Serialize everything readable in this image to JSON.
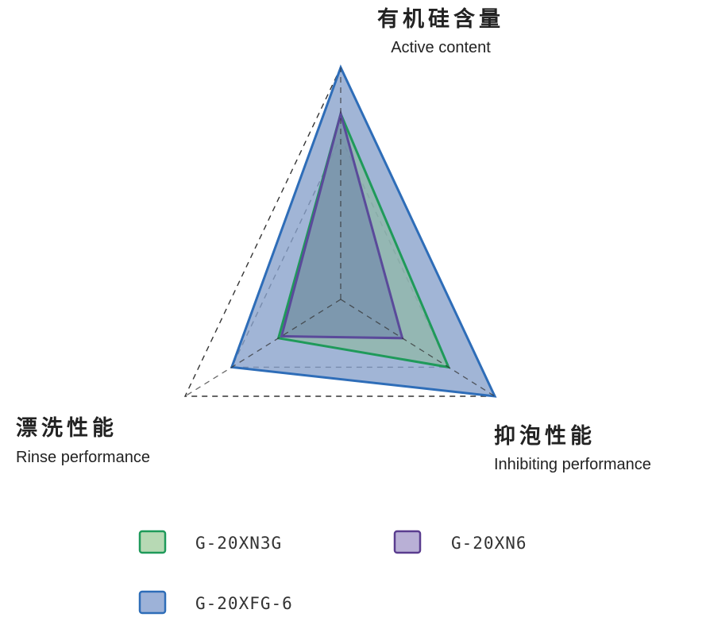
{
  "chart_data": {
    "type": "radar",
    "axes": [
      {
        "label_zh": "有机硅含量",
        "label_en": "Active content"
      },
      {
        "label_zh": "抑泡性能",
        "label_en": "Inhibiting performance"
      },
      {
        "label_zh": "漂洗性能",
        "label_en": "Rinse performance"
      }
    ],
    "range": [
      0,
      1
    ],
    "gridlines": [
      1.0,
      0.7
    ],
    "series": [
      {
        "name": "G-20XFG-6",
        "values": [
          1.0,
          1.0,
          0.7
        ],
        "stroke": "#2e6db8",
        "fill": "#8aa2cc",
        "fill_opacity": 0.8
      },
      {
        "name": "G-20XN3G",
        "values": [
          0.8,
          0.7,
          0.4
        ],
        "stroke": "#1f9a5a",
        "fill": "#8fb8a4",
        "fill_opacity": 0.7
      },
      {
        "name": "G-20XN6",
        "values": [
          0.8,
          0.4,
          0.38
        ],
        "stroke": "#5a4a9a",
        "fill": "#6a80aa",
        "fill_opacity": 0.55
      }
    ],
    "legend": {
      "placement": "bottom",
      "items": [
        {
          "label": "G-20XN3G",
          "fill": "#b7d9b4",
          "stroke": "#1f9a5a"
        },
        {
          "label": "G-20XN6",
          "fill": "#b9b0d6",
          "stroke": "#5a3d8f"
        },
        {
          "label": "G-20XFG-6",
          "fill": "#9db2d8",
          "stroke": "#2e6db8"
        }
      ]
    },
    "grid_color": "#333333"
  }
}
